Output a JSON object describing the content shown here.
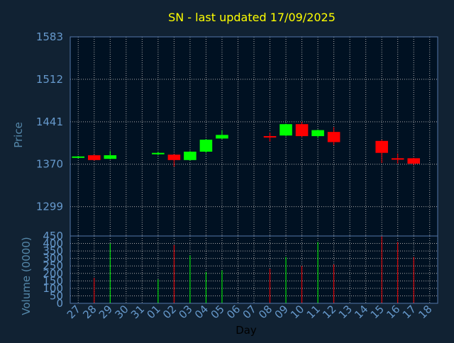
{
  "colors": {
    "background": "#112233",
    "plot_background": "#001122",
    "title": "#FFFF00",
    "axis_label": "#5588AA",
    "tick_label": "#6699CC",
    "frame": "#5577AA",
    "grid": "#AAAAAA",
    "up": "#00FF00",
    "down": "#FF0000"
  },
  "chart_data": {
    "type": "candlestick",
    "title": "SN - last updated 17/09/2025",
    "xlabel": "Day",
    "price_panel": {
      "ylabel": "Price",
      "ylim": [
        1250,
        1583
      ],
      "yticks": [
        1583,
        1512,
        1441,
        1370,
        1299
      ],
      "grid": true
    },
    "volume_panel": {
      "ylabel": "Volume (0000)",
      "ylim": [
        0,
        450
      ],
      "yticks": [
        450,
        400,
        350,
        300,
        250,
        200,
        150,
        100,
        50,
        0
      ],
      "grid": true
    },
    "categories": [
      "27",
      "28",
      "29",
      "30",
      "31",
      "01",
      "02",
      "03",
      "04",
      "05",
      "06",
      "07",
      "08",
      "09",
      "10",
      "11",
      "12",
      "13",
      "14",
      "15",
      "16",
      "17",
      "18"
    ],
    "candles": [
      {
        "x": "27",
        "open": 1381,
        "close": 1383,
        "high": 1384,
        "low": 1380,
        "volume": 0
      },
      {
        "x": "28",
        "open": 1385,
        "close": 1377,
        "high": 1386,
        "low": 1376,
        "volume": 170
      },
      {
        "x": "29",
        "open": 1379,
        "close": 1385,
        "high": 1392,
        "low": 1378,
        "volume": 400
      },
      {
        "x": "01",
        "open": 1387,
        "close": 1389,
        "high": 1391,
        "low": 1385,
        "volume": 160
      },
      {
        "x": "02",
        "open": 1386,
        "close": 1377,
        "high": 1387,
        "low": 1366,
        "volume": 390
      },
      {
        "x": "03",
        "open": 1377,
        "close": 1391,
        "high": 1392,
        "low": 1376,
        "volume": 320
      },
      {
        "x": "04",
        "open": 1391,
        "close": 1411,
        "high": 1412,
        "low": 1389,
        "volume": 210
      },
      {
        "x": "05",
        "open": 1413,
        "close": 1419,
        "high": 1427,
        "low": 1412,
        "volume": 220
      },
      {
        "x": "08",
        "open": 1417,
        "close": 1416,
        "high": 1423,
        "low": 1408,
        "volume": 230
      },
      {
        "x": "09",
        "open": 1418,
        "close": 1437,
        "high": 1438,
        "low": 1417,
        "volume": 310
      },
      {
        "x": "10",
        "open": 1437,
        "close": 1417,
        "high": 1441,
        "low": 1415,
        "volume": 250
      },
      {
        "x": "11",
        "open": 1417,
        "close": 1427,
        "high": 1428,
        "low": 1414,
        "volume": 410
      },
      {
        "x": "12",
        "open": 1424,
        "close": 1407,
        "high": 1432,
        "low": 1402,
        "volume": 260
      },
      {
        "x": "15",
        "open": 1409,
        "close": 1389,
        "high": 1411,
        "low": 1372,
        "volume": 450
      },
      {
        "x": "16",
        "open": 1380,
        "close": 1379,
        "high": 1388,
        "low": 1371,
        "volume": 410
      },
      {
        "x": "17",
        "open": 1380,
        "close": 1371,
        "high": 1381,
        "low": 1368,
        "volume": 310
      }
    ]
  }
}
